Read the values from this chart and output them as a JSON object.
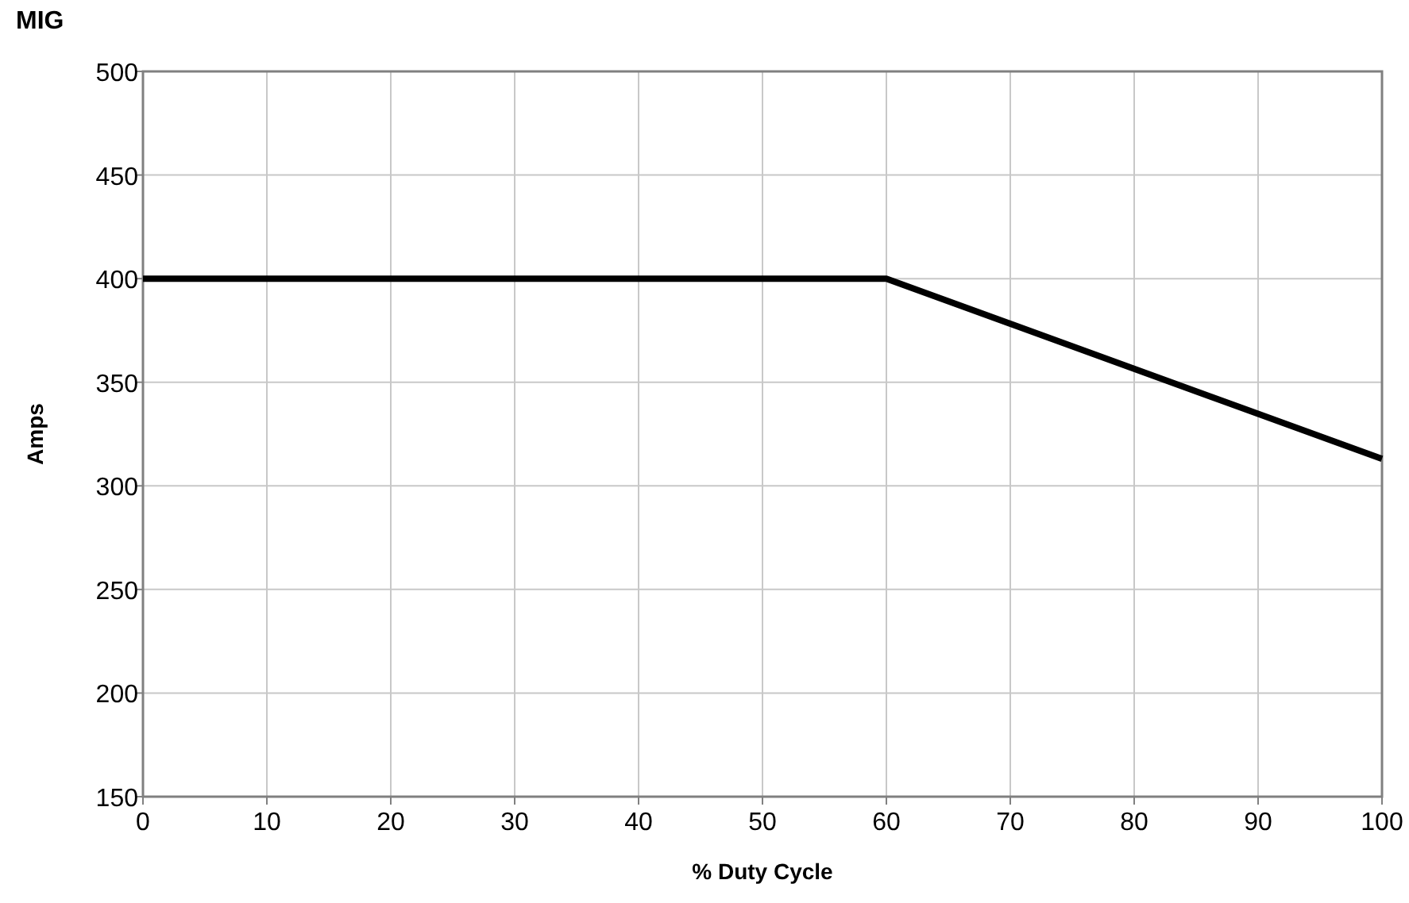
{
  "chart_data": {
    "type": "line",
    "title": "MIG",
    "xlabel": "% Duty Cycle",
    "ylabel": "Amps",
    "x": [
      0,
      60,
      100
    ],
    "series": [
      {
        "color": "#000000",
        "values": [
          400,
          400,
          313
        ]
      }
    ],
    "xlim": [
      0,
      100
    ],
    "xticks": [
      0,
      10,
      20,
      30,
      40,
      50,
      60,
      70,
      80,
      90,
      100
    ],
    "ylim": [
      150,
      500
    ],
    "yticks": [
      150,
      200,
      250,
      300,
      350,
      400,
      450,
      500
    ],
    "grid": true,
    "marker": "none",
    "line_style": "solid"
  }
}
